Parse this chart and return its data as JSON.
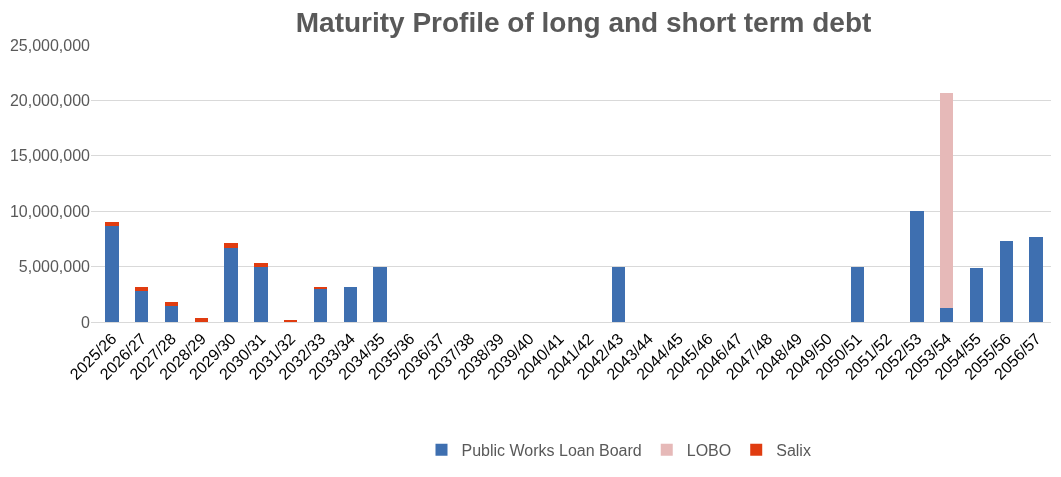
{
  "chart_data": {
    "type": "bar",
    "title": "Maturity Profile of long and short term debt",
    "stacked": true,
    "categories": [
      "2025/26",
      "2026/27",
      "2027/28",
      "2028/29",
      "2029/30",
      "2030/31",
      "2031/32",
      "2032/33",
      "2033/34",
      "2034/35",
      "2035/36",
      "2036/37",
      "2037/38",
      "2038/39",
      "2039/40",
      "2040/41",
      "2041/42",
      "2042/43",
      "2043/44",
      "2044/45",
      "2045/46",
      "2046/47",
      "2047/48",
      "2048/49",
      "2049/50",
      "2050/51",
      "2051/52",
      "2052/53",
      "2053/54",
      "2054/55",
      "2055/56",
      "2056/57"
    ],
    "series": [
      {
        "name": "Public Works Loan Board",
        "color": "#3e6fb0",
        "values": [
          8700000,
          2800000,
          1400000,
          null,
          6700000,
          5000000,
          null,
          3000000,
          3200000,
          5000000,
          null,
          null,
          null,
          null,
          null,
          null,
          null,
          5000000,
          null,
          null,
          null,
          null,
          null,
          null,
          null,
          5000000,
          null,
          10000000,
          1300000,
          4900000,
          7300000,
          7700000
        ]
      },
      {
        "name": "LOBO",
        "color": "#e6b9b8",
        "values": [
          null,
          null,
          null,
          null,
          null,
          null,
          null,
          null,
          null,
          null,
          null,
          null,
          null,
          null,
          null,
          null,
          null,
          null,
          null,
          null,
          null,
          null,
          null,
          null,
          null,
          null,
          null,
          null,
          19400000,
          null,
          null,
          null
        ]
      },
      {
        "name": "Salix",
        "color": "#e03c10",
        "values": [
          300000,
          400000,
          400000,
          400000,
          400000,
          300000,
          200000,
          200000,
          null,
          null,
          null,
          null,
          null,
          null,
          null,
          null,
          null,
          null,
          null,
          null,
          null,
          null,
          null,
          null,
          null,
          null,
          null,
          null,
          null,
          null,
          null,
          null
        ]
      }
    ],
    "ylim": [
      0,
      25000000
    ],
    "yticks": [
      {
        "value": 0,
        "label": "0"
      },
      {
        "value": 5000000,
        "label": "5,000,000"
      },
      {
        "value": 10000000,
        "label": "10,000,000"
      },
      {
        "value": 15000000,
        "label": "15,000,000"
      },
      {
        "value": 20000000,
        "label": "20,000,000"
      },
      {
        "value": 25000000,
        "label": "25,000,000"
      }
    ],
    "grid": "y",
    "legend": "bottom"
  }
}
